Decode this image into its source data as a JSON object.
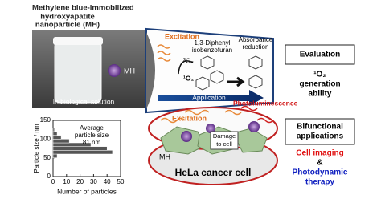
{
  "title_lines": [
    "Methylene blue-immobilized",
    "hydroxyapatite",
    "nanoparticle (MH)"
  ],
  "photo": {
    "particle_label": "MH",
    "caption": "In biological solution"
  },
  "evaluation": {
    "excitation": "Excitation",
    "reagent_lines": [
      "1,3-Diphenyl",
      "isobenzofuran"
    ],
    "result_lines": [
      "Absorbance",
      "reduction"
    ],
    "triplet": "³O₂",
    "singlet": "¹O₂",
    "application": "Application",
    "box": "Evaluation",
    "ability_lines": [
      "¹O₂",
      "generation",
      "ability"
    ]
  },
  "dish": {
    "photoluminescence": "Photoluminescence",
    "excitation": "Excitation",
    "damage_lines": [
      "Damage",
      "to cell"
    ],
    "particle_label": "MH",
    "cell": "HeLa cancer cell"
  },
  "applications": {
    "box_lines": [
      "Bifunctional",
      "applications"
    ],
    "imaging": "Cell imaging",
    "and": "&",
    "therapy_lines": [
      "Photodynamic",
      "therapy"
    ]
  },
  "histogram": {
    "annotation_lines": [
      "Average",
      "particle size",
      "81 nm"
    ],
    "xlabel": "Number of particles",
    "ylabel": "Particle size / nm",
    "bins": [
      50,
      60,
      70,
      80,
      90,
      100,
      110,
      120,
      130
    ],
    "counts": [
      3,
      44,
      40,
      28,
      12,
      6,
      3,
      1
    ],
    "xlim": [
      0,
      50
    ],
    "ylim": [
      0,
      150
    ],
    "xticks": [
      0,
      10,
      20,
      30,
      40,
      50
    ],
    "yticks": [
      0,
      50,
      100,
      150
    ],
    "color": "#555555"
  }
}
